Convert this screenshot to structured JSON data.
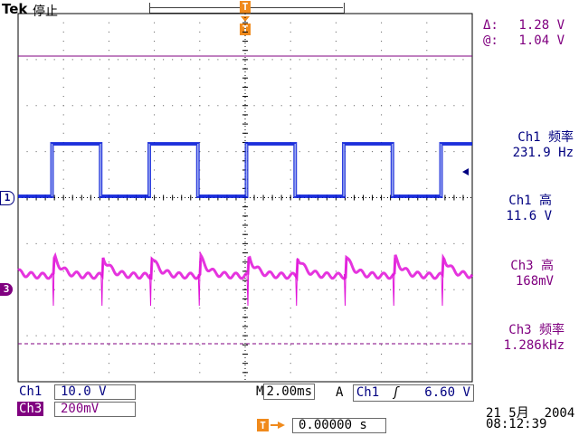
{
  "header": {
    "brand": "Tek",
    "run_status": "停止"
  },
  "cursor_readout": {
    "delta_label": "Δ:",
    "delta_value": "1.28 V",
    "at_label": "@:",
    "at_value": "1.04 V"
  },
  "measurements": [
    {
      "label": "Ch1 频率",
      "value": "231.9 Hz",
      "color": "#000080"
    },
    {
      "label": "Ch1 高",
      "value": "11.6 V",
      "color": "#000080"
    },
    {
      "label": "Ch3 高",
      "value": "168mV",
      "color": "#800080"
    },
    {
      "label": "Ch3 频率",
      "value": "1.286kHz",
      "color": "#800080"
    }
  ],
  "markers": {
    "trigger_top": "T",
    "ch1": "1",
    "ch3": "3"
  },
  "footer": {
    "ch1_label": "Ch1",
    "ch1_scale": "10.0 V",
    "ch3_label": "Ch3",
    "ch3_scale": "200mV",
    "timebase_prefix": "M",
    "timebase": "2.00ms",
    "trigger_mode": "A",
    "trigger_source": "Ch1",
    "trigger_slope": "ʃ",
    "trigger_level": "6.60 V",
    "date": "21 5月  2004",
    "time": "08:12:39",
    "trigger_pos_icon": "T",
    "trigger_offset": "0.00000 s"
  },
  "colors": {
    "ch1_trace": "#0a1ed8",
    "ch3_trace": "#e010d8",
    "ch1_label": "#000080",
    "ch3_label": "#800080",
    "trigger": "#f08a1c",
    "grid": "#000000"
  },
  "icons": [
    "trigger-marker-icon",
    "ch1-ground-marker-icon",
    "ch3-ground-marker-icon",
    "trigger-level-arrow-icon",
    "slope-rising-icon"
  ]
}
